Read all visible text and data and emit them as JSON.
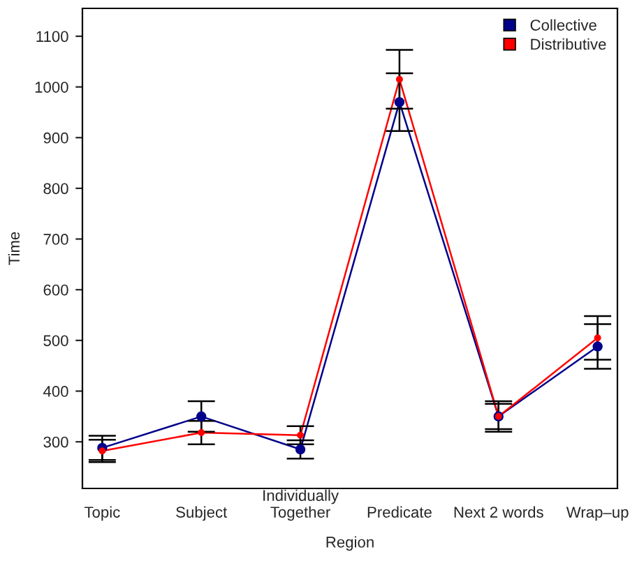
{
  "chart_data": {
    "type": "line",
    "xlabel": "Region",
    "ylabel": "Time",
    "categories": [
      "Topic",
      "Subject",
      "Individually\nTogether",
      "Predicate",
      "Next 2 words",
      "Wrap–up"
    ],
    "series": [
      {
        "name": "Collective",
        "color": "#00008b",
        "values": [
          288,
          350,
          285,
          970,
          350,
          488
        ],
        "errors": [
          24,
          30,
          18,
          57,
          30,
          44
        ]
      },
      {
        "name": "Distributive",
        "color": "#ff0000",
        "values": [
          282,
          318,
          313,
          1015,
          350,
          505
        ],
        "errors": [
          22,
          23,
          18,
          58,
          25,
          43
        ]
      }
    ],
    "ylim": [
      208,
      1155
    ],
    "yticks": [
      300,
      400,
      500,
      600,
      700,
      800,
      900,
      1000,
      1100
    ],
    "marker": "circle",
    "line_style": "solid",
    "grid": false,
    "legend": "top right"
  }
}
